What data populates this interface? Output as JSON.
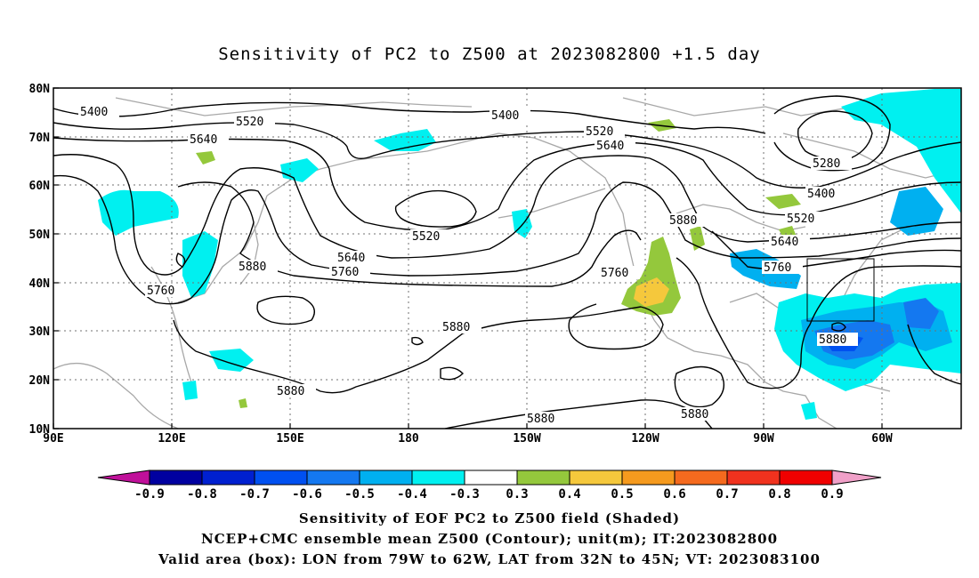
{
  "title": "Sensitivity of PC2 to Z500 at 2023082800 +1.5 day",
  "axes": {
    "lat_labels": [
      "80N",
      "70N",
      "60N",
      "50N",
      "40N",
      "30N",
      "20N",
      "10N"
    ],
    "lon_labels": [
      "90E",
      "120E",
      "150E",
      "180",
      "150W",
      "120W",
      "90W",
      "60W"
    ]
  },
  "contour_labels": [
    "5400",
    "5520",
    "5640",
    "5400",
    "5520",
    "5640",
    "5280",
    "5400",
    "5520",
    "5640",
    "5760",
    "5880",
    "5520",
    "5640",
    "5760",
    "5880",
    "5760",
    "5760",
    "5880",
    "5880",
    "5880",
    "5880",
    "5880"
  ],
  "colorbar": {
    "labels": [
      "-0.9",
      "-0.8",
      "-0.7",
      "-0.6",
      "-0.5",
      "-0.4",
      "-0.3",
      "0.3",
      "0.4",
      "0.5",
      "0.6",
      "0.7",
      "0.8",
      "0.9"
    ],
    "colors": [
      "#0000a0",
      "#0020d0",
      "#0050f0",
      "#1478f0",
      "#00b0f0",
      "#00f0f0",
      "#ffffff",
      "#94c83c",
      "#f5c83c",
      "#f59a1e",
      "#f56a1e",
      "#f0321e",
      "#f00000"
    ],
    "low_arrow_color": "#c0109a",
    "high_arrow_color": "#f0a0c8"
  },
  "footer": {
    "line1": "Sensitivity of EOF PC2 to Z500 field (Shaded)",
    "line2": "NCEP+CMC ensemble mean Z500 (Contour); unit(m); IT:2023082800",
    "line3": "Valid area (box): LON from 79W to 62W, LAT from 32N to 45N; VT: 2023083100"
  }
}
